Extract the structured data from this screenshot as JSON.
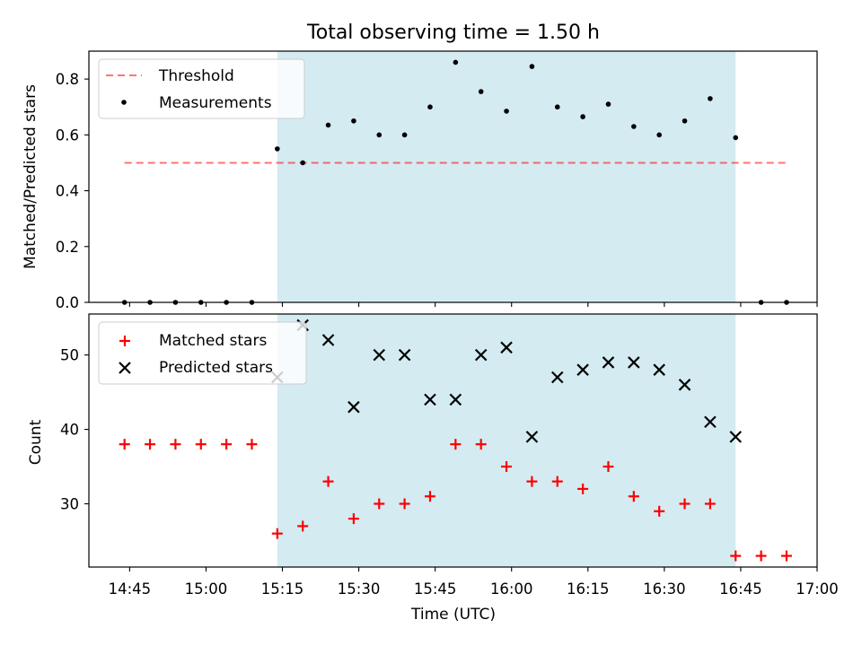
{
  "chart_data": {
    "title": "Total observing time = 1.50 h",
    "xlabel": "Time (UTC)",
    "x_tick_labels": [
      "14:45",
      "15:00",
      "15:15",
      "15:30",
      "15:45",
      "16:00",
      "16:15",
      "16:30",
      "16:45",
      "17:00"
    ],
    "xlim": [
      "14:37",
      "17:00"
    ],
    "shaded_interval": {
      "start": "15:14",
      "end": "16:44"
    },
    "colors": {
      "shade": "#add8e6",
      "threshold": "#ff0000",
      "matched": "#ff0000",
      "measurements": "#000000",
      "predicted": "#000000"
    },
    "panels": [
      {
        "type": "scatter",
        "ylabel": "Matched/Predicted stars",
        "ylim": [
          0,
          0.9
        ],
        "y_ticks": [
          0.0,
          0.2,
          0.4,
          0.6,
          0.8
        ],
        "y_tick_labels": [
          "0.0",
          "0.2",
          "0.4",
          "0.6",
          "0.8"
        ],
        "legend_position": "upper-left",
        "legend": [
          "Threshold",
          "Measurements"
        ],
        "threshold": {
          "name": "Threshold",
          "value": 0.5,
          "x_start": "14:44",
          "x_end": "16:54"
        },
        "series": [
          {
            "name": "Measurements",
            "x": [
              "14:44",
              "14:49",
              "14:54",
              "14:59",
              "15:04",
              "15:09",
              "15:14",
              "15:19",
              "15:24",
              "15:29",
              "15:34",
              "15:39",
              "15:44",
              "15:49",
              "15:54",
              "15:59",
              "16:04",
              "16:09",
              "16:14",
              "16:19",
              "16:24",
              "16:29",
              "16:34",
              "16:39",
              "16:44",
              "16:49",
              "16:54"
            ],
            "values": [
              0,
              0,
              0,
              0,
              0,
              0,
              0.55,
              0.5,
              0.635,
              0.65,
              0.6,
              0.6,
              0.7,
              0.86,
              0.755,
              0.685,
              0.845,
              0.7,
              0.665,
              0.71,
              0.63,
              0.6,
              0.65,
              0.73,
              0.59,
              0,
              0
            ]
          }
        ]
      },
      {
        "type": "scatter",
        "ylabel": "Count",
        "ylim": [
          21.5,
          55.5
        ],
        "y_ticks": [
          30,
          40,
          50
        ],
        "y_tick_labels": [
          "30",
          "40",
          "50"
        ],
        "legend_position": "upper-left",
        "legend": [
          "Matched stars",
          "Predicted stars"
        ],
        "series": [
          {
            "name": "Matched stars",
            "x": [
              "14:44",
              "14:49",
              "14:54",
              "14:59",
              "15:04",
              "15:09",
              "15:14",
              "15:19",
              "15:24",
              "15:29",
              "15:34",
              "15:39",
              "15:44",
              "15:49",
              "15:54",
              "15:59",
              "16:04",
              "16:09",
              "16:14",
              "16:19",
              "16:24",
              "16:29",
              "16:34",
              "16:39",
              "16:44",
              "16:49",
              "16:54"
            ],
            "values": [
              38,
              38,
              38,
              38,
              38,
              38,
              26,
              27,
              33,
              28,
              30,
              30,
              31,
              38,
              38,
              35,
              33,
              33,
              32,
              35,
              31,
              29,
              30,
              30,
              23,
              23,
              23
            ]
          },
          {
            "name": "Predicted stars",
            "x": [
              "15:14",
              "15:19",
              "15:24",
              "15:29",
              "15:34",
              "15:39",
              "15:44",
              "15:49",
              "15:54",
              "15:59",
              "16:04",
              "16:09",
              "16:14",
              "16:19",
              "16:24",
              "16:29",
              "16:34",
              "16:39",
              "16:44"
            ],
            "values": [
              47,
              54,
              52,
              43,
              50,
              50,
              44,
              44,
              50,
              51,
              39,
              47,
              48,
              49,
              49,
              48,
              46,
              41,
              39
            ]
          }
        ]
      }
    ]
  }
}
